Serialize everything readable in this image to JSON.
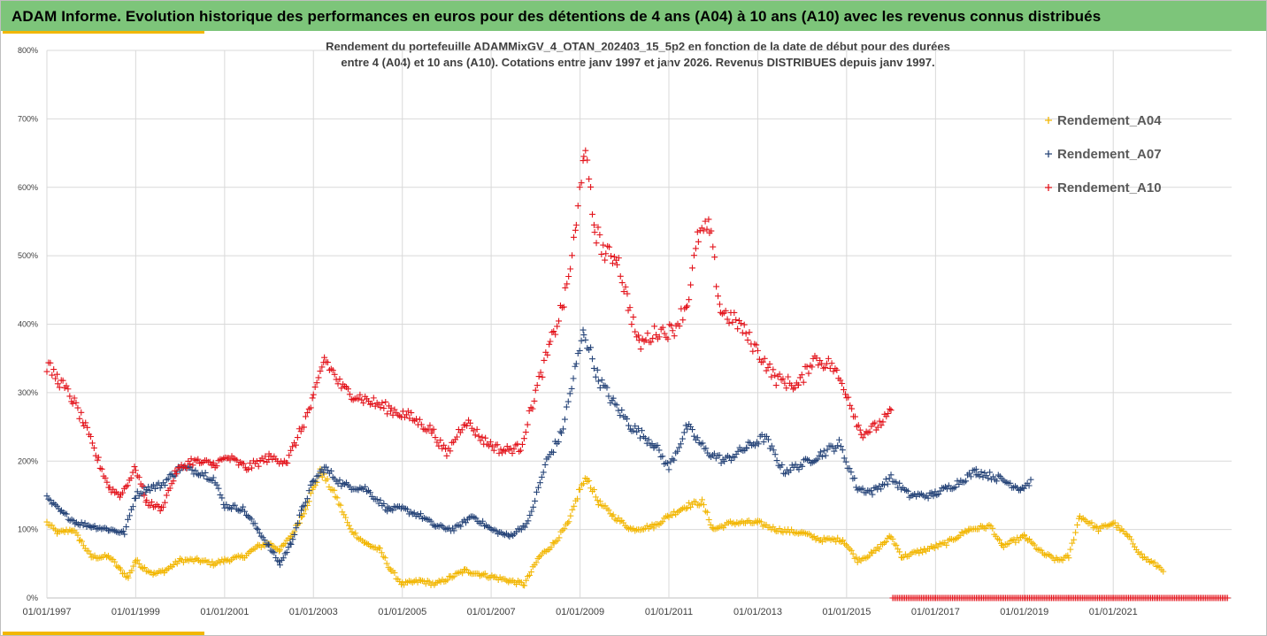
{
  "header": {
    "title": "ADAM Informe. Evolution historique des performances en euros pour des détentions de 4 ans (A04) à 10 ans (A10) avec les revenus connus distribués"
  },
  "colors": {
    "header_bg": "#7dc57a",
    "accent": "#f2b705",
    "A04": "#f2b705",
    "A07": "#264478",
    "A10": "#e3131b"
  },
  "chart_data": {
    "type": "scatter",
    "title_lines": [
      "Rendement du portefeuille ADAMMixGV_4_OTAN_202403_15_5p2  en fonction de la date de début pour des durées",
      "entre 4 (A04) et 10 ans (A10). Cotations entre janv 1997 et janv 2026. Revenus DISTRIBUES depuis janv 1997."
    ],
    "xlabel": "",
    "ylabel": "",
    "x_axis": {
      "type": "date",
      "min": "1997-01-01",
      "max": "2023-09-01"
    },
    "x_tick_labels": [
      "01/01/1997",
      "01/01/1999",
      "01/01/2001",
      "01/01/2003",
      "01/01/2005",
      "01/01/2007",
      "01/01/2009",
      "01/01/2011",
      "01/01/2013",
      "01/01/2015",
      "01/01/2017",
      "01/01/2019",
      "01/01/2021"
    ],
    "y_axis": {
      "min": 0,
      "max": 800,
      "unit": "%"
    },
    "y_tick_labels": [
      "0%",
      "100%",
      "200%",
      "300%",
      "400%",
      "500%",
      "600%",
      "700%",
      "800%"
    ],
    "grid": true,
    "marker": "+",
    "legend_position": "top-right",
    "series": [
      {
        "name": "Rendement_A04",
        "points": [
          [
            "1997-01-01",
            110
          ],
          [
            "1997-04-01",
            95
          ],
          [
            "1997-08-01",
            100
          ],
          [
            "1997-10-01",
            85
          ],
          [
            "1998-01-01",
            60
          ],
          [
            "1998-06-01",
            60
          ],
          [
            "1998-09-01",
            40
          ],
          [
            "1998-11-01",
            30
          ],
          [
            "1999-01-01",
            55
          ],
          [
            "1999-03-01",
            45
          ],
          [
            "1999-06-01",
            35
          ],
          [
            "1999-09-01",
            40
          ],
          [
            "2000-01-01",
            55
          ],
          [
            "2000-06-01",
            55
          ],
          [
            "2000-10-01",
            50
          ],
          [
            "2001-01-01",
            55
          ],
          [
            "2001-06-01",
            60
          ],
          [
            "2001-10-01",
            75
          ],
          [
            "2002-01-01",
            80
          ],
          [
            "2002-04-01",
            70
          ],
          [
            "2002-07-01",
            90
          ],
          [
            "2002-10-01",
            120
          ],
          [
            "2003-01-01",
            160
          ],
          [
            "2003-03-01",
            185
          ],
          [
            "2003-07-01",
            150
          ],
          [
            "2003-11-01",
            100
          ],
          [
            "2004-03-01",
            80
          ],
          [
            "2004-07-01",
            70
          ],
          [
            "2004-10-01",
            40
          ],
          [
            "2005-01-01",
            20
          ],
          [
            "2005-06-01",
            25
          ],
          [
            "2005-10-01",
            20
          ],
          [
            "2006-02-01",
            30
          ],
          [
            "2006-06-01",
            40
          ],
          [
            "2006-10-01",
            35
          ],
          [
            "2007-02-01",
            30
          ],
          [
            "2007-06-01",
            25
          ],
          [
            "2007-10-01",
            20
          ],
          [
            "2008-02-01",
            60
          ],
          [
            "2008-06-01",
            80
          ],
          [
            "2008-10-01",
            110
          ],
          [
            "2009-01-01",
            160
          ],
          [
            "2009-03-01",
            175
          ],
          [
            "2009-06-01",
            140
          ],
          [
            "2009-10-01",
            120
          ],
          [
            "2010-03-01",
            100
          ],
          [
            "2010-09-01",
            105
          ],
          [
            "2011-01-01",
            120
          ],
          [
            "2011-06-01",
            135
          ],
          [
            "2011-10-01",
            140
          ],
          [
            "2012-01-01",
            100
          ],
          [
            "2012-06-01",
            110
          ],
          [
            "2013-01-01",
            110
          ],
          [
            "2013-06-01",
            100
          ],
          [
            "2014-01-01",
            95
          ],
          [
            "2014-06-01",
            85
          ],
          [
            "2014-12-01",
            85
          ],
          [
            "2015-04-01",
            55
          ],
          [
            "2015-08-01",
            65
          ],
          [
            "2016-01-01",
            90
          ],
          [
            "2016-04-01",
            60
          ],
          [
            "2016-10-01",
            70
          ],
          [
            "2017-04-01",
            80
          ],
          [
            "2017-10-01",
            100
          ],
          [
            "2018-04-01",
            105
          ],
          [
            "2018-07-01",
            75
          ],
          [
            "2019-01-01",
            90
          ],
          [
            "2019-06-01",
            65
          ],
          [
            "2019-10-01",
            55
          ],
          [
            "2020-01-01",
            60
          ],
          [
            "2020-04-01",
            120
          ],
          [
            "2020-09-01",
            100
          ],
          [
            "2021-01-01",
            110
          ],
          [
            "2021-05-01",
            90
          ],
          [
            "2021-09-01",
            60
          ],
          [
            "2022-03-01",
            40
          ]
        ]
      },
      {
        "name": "Rendement_A07",
        "points": [
          [
            "1997-01-01",
            145
          ],
          [
            "1997-05-01",
            125
          ],
          [
            "1997-09-01",
            110
          ],
          [
            "1998-01-01",
            105
          ],
          [
            "1998-06-01",
            100
          ],
          [
            "1998-10-01",
            95
          ],
          [
            "1999-01-01",
            150
          ],
          [
            "1999-04-01",
            160
          ],
          [
            "1999-08-01",
            165
          ],
          [
            "2000-01-01",
            190
          ],
          [
            "2000-06-01",
            185
          ],
          [
            "2000-10-01",
            175
          ],
          [
            "2001-01-01",
            135
          ],
          [
            "2001-06-01",
            130
          ],
          [
            "2001-10-01",
            100
          ],
          [
            "2002-01-01",
            75
          ],
          [
            "2002-04-01",
            50
          ],
          [
            "2002-07-01",
            80
          ],
          [
            "2002-10-01",
            130
          ],
          [
            "2003-01-01",
            170
          ],
          [
            "2003-04-01",
            190
          ],
          [
            "2003-09-01",
            165
          ],
          [
            "2004-03-01",
            160
          ],
          [
            "2004-09-01",
            130
          ],
          [
            "2005-01-01",
            130
          ],
          [
            "2005-06-01",
            120
          ],
          [
            "2005-10-01",
            105
          ],
          [
            "2006-03-01",
            100
          ],
          [
            "2006-08-01",
            120
          ],
          [
            "2007-01-01",
            100
          ],
          [
            "2007-06-01",
            90
          ],
          [
            "2007-11-01",
            110
          ],
          [
            "2008-04-01",
            200
          ],
          [
            "2008-08-01",
            240
          ],
          [
            "2008-12-01",
            340
          ],
          [
            "2009-02-01",
            390
          ],
          [
            "2009-06-01",
            320
          ],
          [
            "2009-10-01",
            285
          ],
          [
            "2010-03-01",
            250
          ],
          [
            "2010-09-01",
            225
          ],
          [
            "2011-01-01",
            190
          ],
          [
            "2011-06-01",
            250
          ],
          [
            "2011-11-01",
            215
          ],
          [
            "2012-04-01",
            200
          ],
          [
            "2012-10-01",
            220
          ],
          [
            "2013-03-01",
            235
          ],
          [
            "2013-08-01",
            185
          ],
          [
            "2014-01-01",
            195
          ],
          [
            "2014-06-01",
            210
          ],
          [
            "2014-11-01",
            225
          ],
          [
            "2015-04-01",
            160
          ],
          [
            "2015-08-01",
            155
          ],
          [
            "2016-01-01",
            175
          ],
          [
            "2016-06-01",
            150
          ],
          [
            "2016-12-01",
            150
          ],
          [
            "2017-06-01",
            165
          ],
          [
            "2017-12-01",
            185
          ],
          [
            "2018-06-01",
            175
          ],
          [
            "2018-12-01",
            160
          ],
          [
            "2019-03-01",
            170
          ]
        ]
      },
      {
        "name": "Rendement_A10",
        "points": [
          [
            "1997-01-01",
            340
          ],
          [
            "1997-04-01",
            320
          ],
          [
            "1997-08-01",
            290
          ],
          [
            "1997-11-01",
            255
          ],
          [
            "1998-03-01",
            200
          ],
          [
            "1998-06-01",
            160
          ],
          [
            "1998-09-01",
            150
          ],
          [
            "1999-01-01",
            190
          ],
          [
            "1999-04-01",
            140
          ],
          [
            "1999-08-01",
            130
          ],
          [
            "1999-12-01",
            185
          ],
          [
            "2000-04-01",
            200
          ],
          [
            "2000-10-01",
            195
          ],
          [
            "2001-02-01",
            205
          ],
          [
            "2001-07-01",
            190
          ],
          [
            "2002-01-01",
            205
          ],
          [
            "2002-06-01",
            200
          ],
          [
            "2002-10-01",
            250
          ],
          [
            "2003-01-01",
            290
          ],
          [
            "2003-04-01",
            350
          ],
          [
            "2003-09-01",
            305
          ],
          [
            "2004-03-01",
            290
          ],
          [
            "2004-10-01",
            275
          ],
          [
            "2005-03-01",
            265
          ],
          [
            "2005-09-01",
            245
          ],
          [
            "2006-01-01",
            210
          ],
          [
            "2006-06-01",
            260
          ],
          [
            "2006-11-01",
            230
          ],
          [
            "2007-04-01",
            215
          ],
          [
            "2007-09-01",
            220
          ],
          [
            "2008-01-01",
            300
          ],
          [
            "2008-05-01",
            370
          ],
          [
            "2008-09-01",
            440
          ],
          [
            "2008-12-01",
            540
          ],
          [
            "2009-02-01",
            660
          ],
          [
            "2009-05-01",
            540
          ],
          [
            "2009-08-01",
            500
          ],
          [
            "2009-11-01",
            500
          ],
          [
            "2010-02-01",
            430
          ],
          [
            "2010-05-01",
            370
          ],
          [
            "2010-10-01",
            390
          ],
          [
            "2011-02-01",
            390
          ],
          [
            "2011-06-01",
            430
          ],
          [
            "2011-09-01",
            530
          ],
          [
            "2011-12-01",
            540
          ],
          [
            "2012-03-01",
            420
          ],
          [
            "2012-08-01",
            400
          ],
          [
            "2013-01-01",
            360
          ],
          [
            "2013-06-01",
            320
          ],
          [
            "2013-12-01",
            310
          ],
          [
            "2014-04-01",
            350
          ],
          [
            "2014-09-01",
            340
          ],
          [
            "2015-01-01",
            300
          ],
          [
            "2015-05-01",
            240
          ],
          [
            "2015-09-01",
            250
          ],
          [
            "2016-01-01",
            270
          ],
          [
            "2016-01-15",
            0
          ],
          [
            "2017-01-01",
            0
          ],
          [
            "2018-01-01",
            0
          ],
          [
            "2019-01-01",
            0
          ],
          [
            "2020-01-01",
            0
          ],
          [
            "2021-01-01",
            0
          ],
          [
            "2022-01-01",
            0
          ],
          [
            "2023-08-01",
            0
          ]
        ]
      }
    ]
  }
}
